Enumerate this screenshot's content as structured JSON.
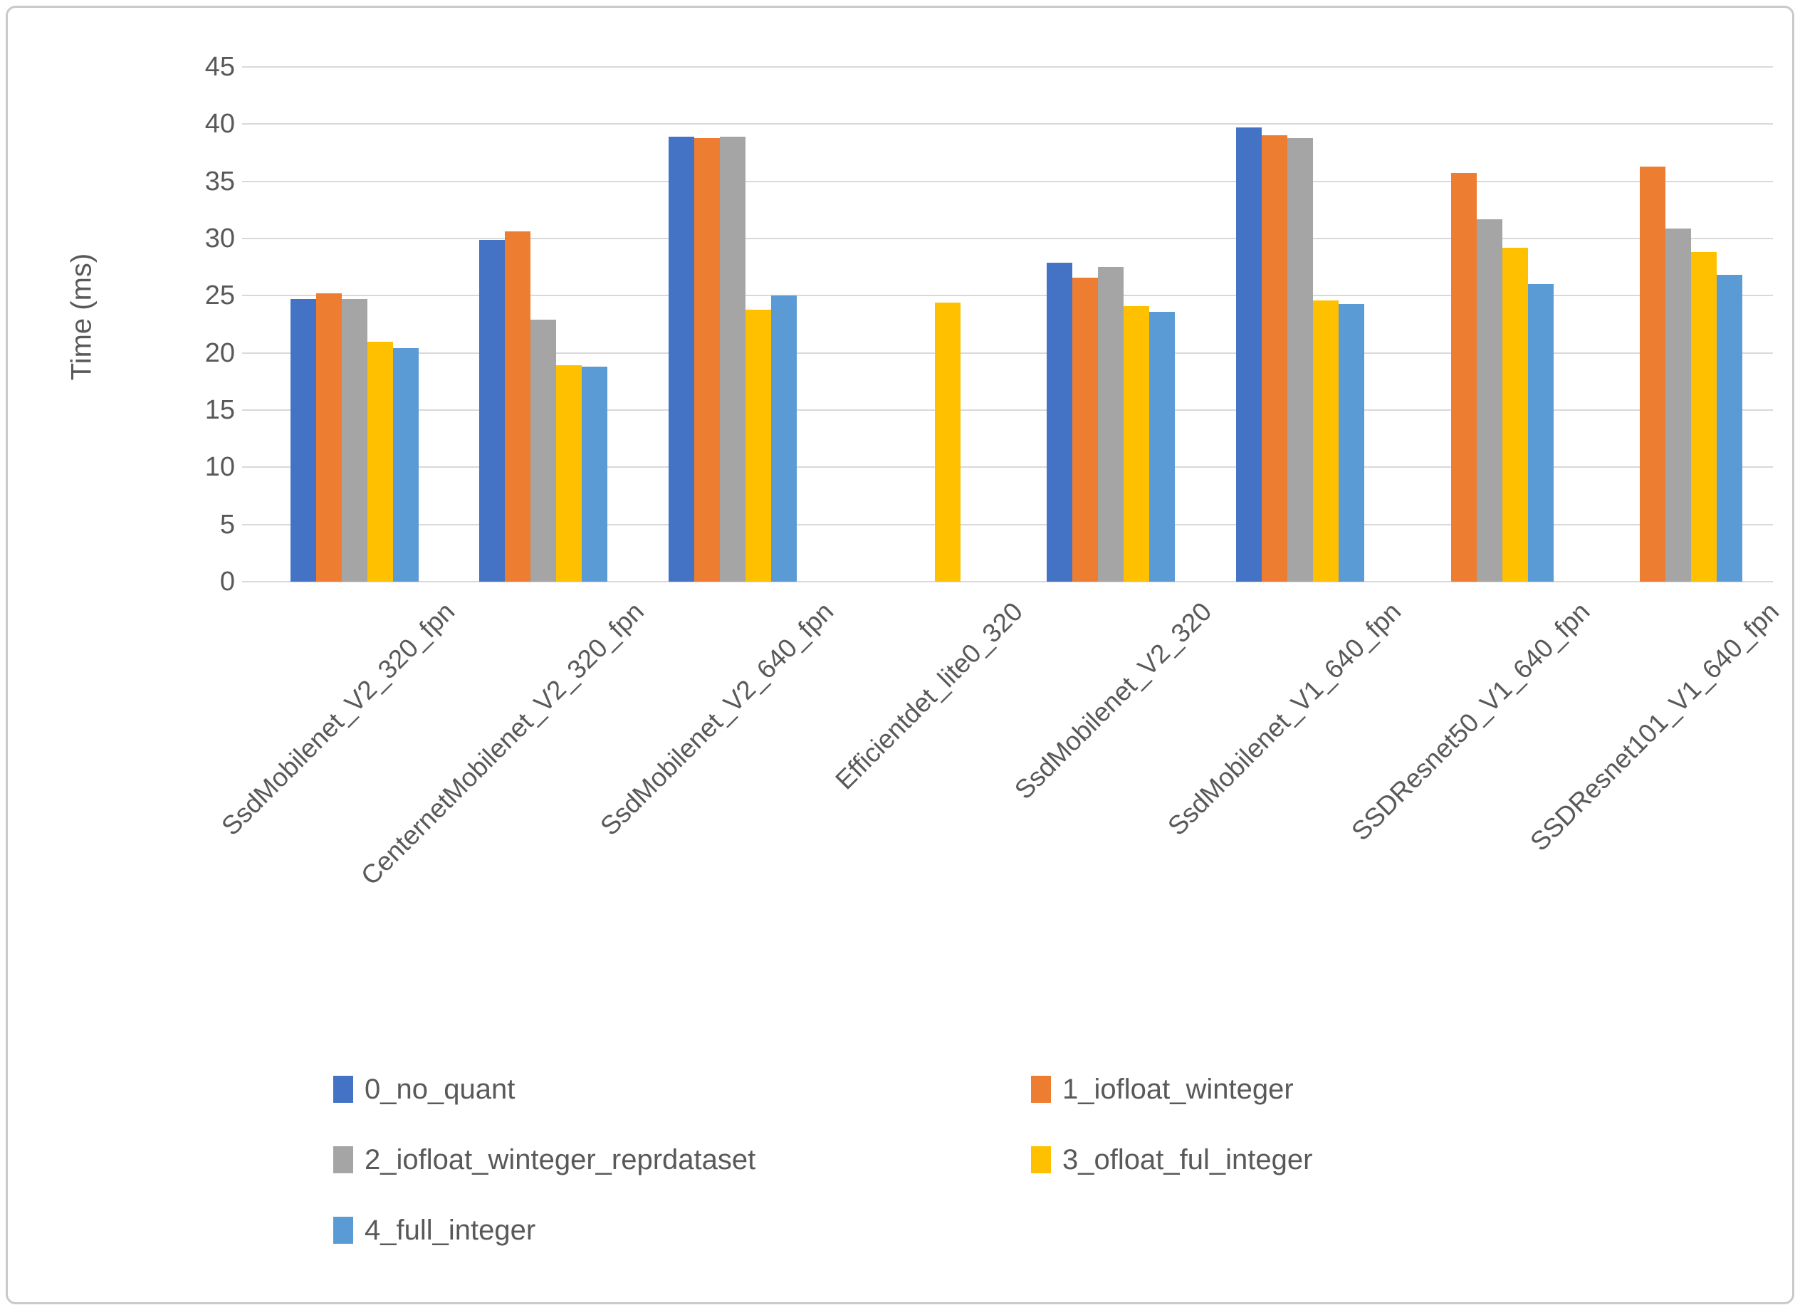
{
  "figure": {
    "background": "#ffffff",
    "border_color": "#c9c9c9",
    "gridline_color": "#d9d9d9",
    "text_color": "#595959"
  },
  "chart_data": {
    "type": "bar",
    "title": "",
    "xlabel": "",
    "ylabel": "Time (ms)",
    "ylim": [
      0,
      45
    ],
    "yticks": [
      0,
      5,
      10,
      15,
      20,
      25,
      30,
      35,
      40,
      45
    ],
    "grid": true,
    "legend_position": "bottom",
    "categories": [
      "SsdMobilenet_V2_320_fpn",
      "CenternetMobilenet_V2_320_fpn",
      "SsdMobilenet_V2_640_fpn",
      "Efficientdet_lite0_320",
      "SsdMobilenet_V2_320",
      "SsdMobilenet_V1_640_fpn",
      "SSDResnet50_V1_640_fpn",
      "SSDResnet101_V1_640_fpn"
    ],
    "series": [
      {
        "name": "0_no_quant",
        "color": "#4472c4",
        "values": [
          24.7,
          29.9,
          38.9,
          null,
          27.9,
          39.7,
          null,
          null
        ]
      },
      {
        "name": "1_iofloat_winteger",
        "color": "#ed7d31",
        "values": [
          25.2,
          30.6,
          38.8,
          null,
          26.6,
          39.0,
          35.7,
          36.3
        ]
      },
      {
        "name": "2_iofloat_winteger_reprdataset",
        "color": "#a5a5a5",
        "values": [
          24.7,
          22.9,
          38.9,
          null,
          27.5,
          38.8,
          31.7,
          30.9
        ]
      },
      {
        "name": "3_ofloat_ful_integer",
        "color": "#ffc000",
        "values": [
          21.0,
          18.9,
          23.8,
          24.4,
          24.1,
          24.6,
          29.2,
          28.8
        ]
      },
      {
        "name": "4_full_integer",
        "color": "#5b9bd5",
        "values": [
          20.4,
          18.8,
          25.0,
          null,
          23.6,
          24.3,
          26.0,
          26.8
        ]
      }
    ]
  }
}
